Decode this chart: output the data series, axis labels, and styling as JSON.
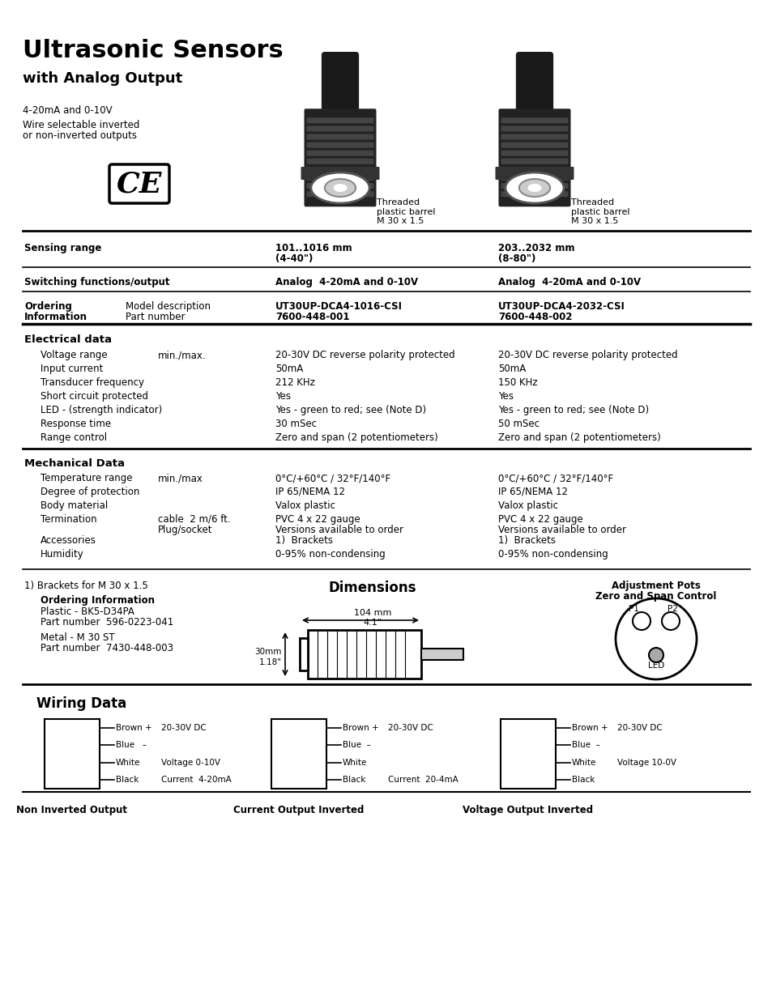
{
  "title": "Ultrasonic Sensors",
  "subtitle": "with Analog Output",
  "bg_color": "#ffffff",
  "intro_line1": "4-20mA and 0-10V",
  "intro_line2a": "Wire selectable inverted",
  "intro_line2b": "or non-inverted outputs",
  "sensor_label": "Threaded\nplastic barrel\nM 30 x 1.5",
  "c0": 30,
  "c1": 340,
  "c2": 615,
  "row1_label": "Sensing range",
  "row1_c1a": "101..1016 mm",
  "row1_c1b": "(4-40\")",
  "row1_c2a": "203..2032 mm",
  "row1_c2b": "(8-80\")",
  "row2_label": "Switching functions/output",
  "row2_c1": "Analog  4-20mA and 0-10V",
  "row2_c2": "Analog  4-20mA and 0-10V",
  "row3_label1": "Ordering",
  "row3_label2": "Information",
  "row3_sub1": "Model description",
  "row3_sub2": "Part number",
  "row3_c1a": "UT30UP-DCA4-1016-CSI",
  "row3_c1b": "7600-448-001",
  "row3_c2a": "UT30UP-DCA4-2032-CSI",
  "row3_c2b": "7600-448-002",
  "elec_title": "Electrical data",
  "elec_rows": [
    {
      "label": "Voltage range",
      "sub": "min./max.",
      "c1": "20-30V DC reverse polarity protected",
      "c2": "20-30V DC reverse polarity protected"
    },
    {
      "label": "Input current",
      "sub": "",
      "c1": "50mA",
      "c2": "50mA"
    },
    {
      "label": "Transducer frequency",
      "sub": "",
      "c1": "212 KHz",
      "c2": "150 KHz"
    },
    {
      "label": "Short circuit protected",
      "sub": "",
      "c1": "Yes",
      "c2": "Yes"
    },
    {
      "label": "LED - (strength indicator)",
      "sub": "",
      "c1": "Yes - green to red; see (Note D)",
      "c2": "Yes - green to red; see (Note D)"
    },
    {
      "label": "Response time",
      "sub": "",
      "c1": "30 mSec",
      "c2": "50 mSec"
    },
    {
      "label": "Range control",
      "sub": "",
      "c1": "Zero and span (2 potentiometers)",
      "c2": "Zero and span (2 potentiometers)"
    }
  ],
  "mech_title": "Mechanical Data",
  "mech_rows": [
    {
      "label": "Temperature range",
      "sub": "min./max",
      "c1": "0°C/+60°C / 32°F/140°F",
      "c2": "0°C/+60°C / 32°F/140°F"
    },
    {
      "label": "Degree of protection",
      "sub": "",
      "c1": "IP 65/NEMA 12",
      "c2": "IP 65/NEMA 12"
    },
    {
      "label": "Body material",
      "sub": "",
      "c1": "Valox plastic",
      "c2": "Valox plastic"
    },
    {
      "label": "Termination",
      "sub": "cable  2 m/6 ft.\nPlug/socket",
      "c1": "PVC 4 x 22 gauge\nVersions available to order",
      "c2": "PVC 4 x 22 gauge\nVersions available to order"
    },
    {
      "label": "Accessories",
      "sub": "",
      "c1": "1)  Brackets",
      "c2": "1)  Brackets"
    },
    {
      "label": "Humidity",
      "sub": "",
      "c1": "0-95% non-condensing",
      "c2": "0-95% non-condensing"
    }
  ],
  "footnote": "1) Brackets for M 30 x 1.5",
  "ord_title": "Ordering Information",
  "ord_lines": [
    "Plastic - BK5-D34PA",
    "Part number  596-0223-041",
    "Metal - M 30 ST",
    "Part number  7430-448-003"
  ],
  "dim_title": "Dimensions",
  "dim_104": "104 mm",
  "dim_41": "4.1\"",
  "dim_30": "30mm",
  "dim_118": "1.18\"",
  "adj_title1": "Adjustment Pots",
  "adj_title2": "Zero and Span Control",
  "adj_p1": "P1",
  "adj_p2": "P2",
  "adj_led": "LED",
  "wiring_title": "Wiring Data",
  "wd1_title": "Non Inverted Output",
  "wd1_rows": [
    [
      "Brown +",
      "20-30V DC"
    ],
    [
      "Blue   –",
      ""
    ],
    [
      "White",
      "Voltage 0-10V"
    ],
    [
      "Black",
      "Current  4-20mA"
    ]
  ],
  "wd2_title": "Current Output Inverted",
  "wd2_rows": [
    [
      "Brown +",
      "20-30V DC"
    ],
    [
      "Blue  –",
      ""
    ],
    [
      "White",
      ""
    ],
    [
      "Black",
      "Current  20-4mA"
    ]
  ],
  "wd3_title": "Voltage Output Inverted",
  "wd3_rows": [
    [
      "Brown +",
      "20-30V DC"
    ],
    [
      "Blue  –",
      ""
    ],
    [
      "White",
      "Voltage 10-0V"
    ],
    [
      "Black",
      ""
    ]
  ]
}
